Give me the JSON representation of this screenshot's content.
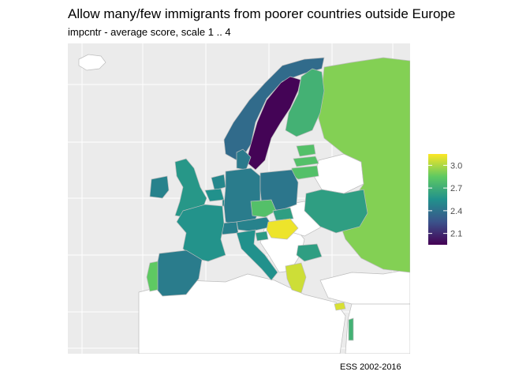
{
  "title": "Allow many/few immigrants from poorer countries outside Europe",
  "subtitle": "impcntr - average score, scale 1 .. 4",
  "caption": "ESS 2002-2016",
  "colors": {
    "panel_background": "#ebebeb",
    "grid": "#ffffff",
    "no_data_fill": "#ffffff",
    "border": "#bdbdbd"
  },
  "chart_data": {
    "type": "choropleth",
    "variable": "impcntr",
    "scale": [
      1,
      4
    ],
    "legend": {
      "position": "right",
      "ticks": [
        2.1,
        2.4,
        2.7,
        3.0
      ],
      "range": [
        1.95,
        3.15
      ],
      "palette": "viridis"
    },
    "regions": [
      {
        "name": "Sweden",
        "value": 1.96
      },
      {
        "name": "Norway",
        "value": 2.37
      },
      {
        "name": "Finland",
        "value": 2.72
      },
      {
        "name": "Russia",
        "value": 2.92
      },
      {
        "name": "Estonia",
        "value": 2.8
      },
      {
        "name": "Lithuania",
        "value": 2.8
      },
      {
        "name": "Latvia",
        "value": 2.8
      },
      {
        "name": "Denmark",
        "value": 2.44
      },
      {
        "name": "United Kingdom",
        "value": 2.58
      },
      {
        "name": "Ireland",
        "value": 2.48
      },
      {
        "name": "Netherlands",
        "value": 2.5
      },
      {
        "name": "Belgium",
        "value": 2.55
      },
      {
        "name": "Luxembourg",
        "value": 2.5
      },
      {
        "name": "Germany",
        "value": 2.45
      },
      {
        "name": "France",
        "value": 2.56
      },
      {
        "name": "Switzerland",
        "value": 2.47
      },
      {
        "name": "Austria",
        "value": 2.48
      },
      {
        "name": "Poland",
        "value": 2.42
      },
      {
        "name": "Czech Republic",
        "value": 2.8
      },
      {
        "name": "Slovakia",
        "value": 2.62
      },
      {
        "name": "Hungary",
        "value": 3.12
      },
      {
        "name": "Slovenia",
        "value": 2.6
      },
      {
        "name": "Ukraine",
        "value": 2.62
      },
      {
        "name": "Bulgaria",
        "value": 2.62
      },
      {
        "name": "Italy",
        "value": 2.55
      },
      {
        "name": "Spain",
        "value": 2.45
      },
      {
        "name": "Portugal",
        "value": 2.85
      },
      {
        "name": "Greece",
        "value": 3.06
      },
      {
        "name": "Cyprus",
        "value": 3.08
      },
      {
        "name": "Israel",
        "value": 2.72
      }
    ]
  }
}
